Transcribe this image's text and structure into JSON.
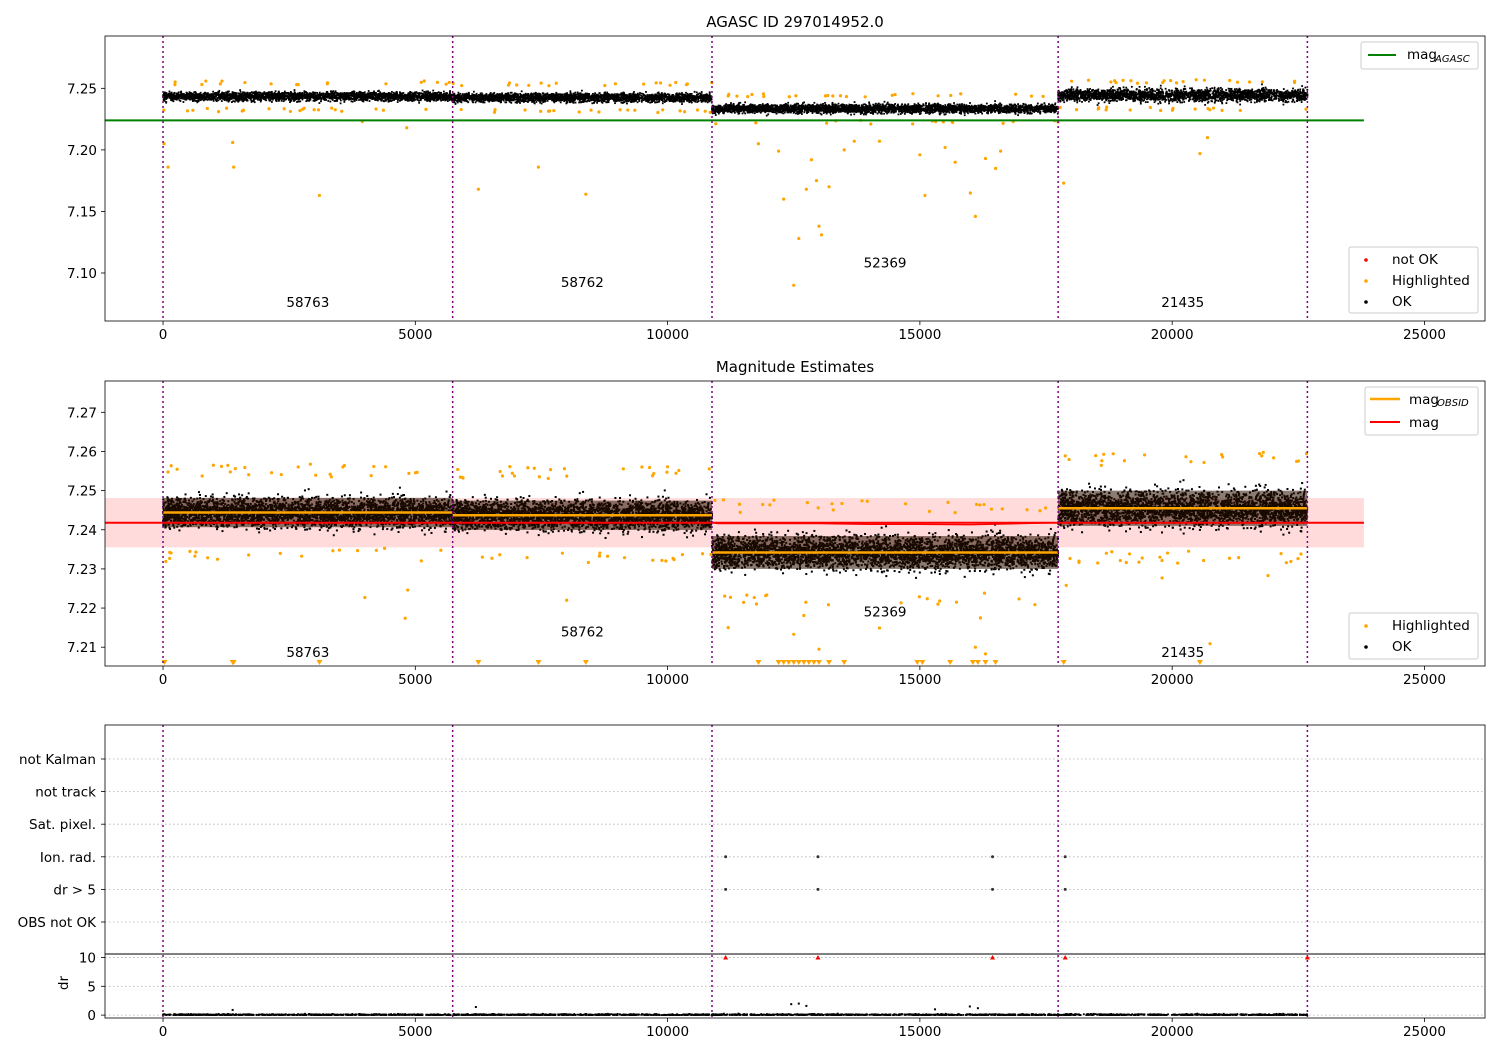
{
  "colors": {
    "ok": "#000000",
    "highlighted": "#ffa500",
    "not_ok": "#ff0000",
    "agasc_line": "#008000",
    "obsid_line": "#ffa500",
    "mag_line": "#ff0000",
    "mag_band": "#ffcccc",
    "obs_divider": "#800080",
    "grid": "#b0b0b0"
  },
  "chart_data": [
    {
      "type": "scatter",
      "title": "AGASC ID 297014952.0",
      "xlim": [
        -1150,
        26200
      ],
      "ylim": [
        7.061,
        7.2925
      ],
      "xticks": [
        0,
        5000,
        10000,
        15000,
        20000,
        25000
      ],
      "xtick_labels": [
        "0",
        "5000",
        "10000",
        "15000",
        "20000",
        "25000"
      ],
      "yticks": [
        7.1,
        7.15,
        7.2,
        7.25
      ],
      "ytick_labels": [
        "7.10",
        "7.15",
        "7.20",
        "7.25"
      ],
      "obs_boundaries": [
        0,
        5740,
        10880,
        17740,
        22680
      ],
      "observations": [
        {
          "obsid": "58763",
          "start": 0,
          "end": 5740,
          "mean": 7.2435,
          "label_y": 7.0725
        },
        {
          "obsid": "58762",
          "start": 5740,
          "end": 10880,
          "mean": 7.2425,
          "label_y": 7.0885
        },
        {
          "obsid": "52369",
          "start": 10880,
          "end": 17740,
          "mean": 7.2335,
          "label_y": 7.1045
        },
        {
          "obsid": "21435",
          "start": 17740,
          "end": 22680,
          "mean": 7.2445,
          "label_y": 7.0725
        }
      ],
      "hlines": [
        {
          "name": "mag_AGASC",
          "y": 7.224,
          "x": [
            -1150,
            23800
          ]
        }
      ],
      "highlighted_points": [
        [
          20,
          7.205
        ],
        [
          100,
          7.186
        ],
        [
          1380,
          7.206
        ],
        [
          1400,
          7.186
        ],
        [
          3100,
          7.163
        ],
        [
          4830,
          7.218
        ],
        [
          3950,
          7.223
        ],
        [
          6250,
          7.168
        ],
        [
          7440,
          7.186
        ],
        [
          8380,
          7.164
        ],
        [
          11800,
          7.205
        ],
        [
          12200,
          7.199
        ],
        [
          12300,
          7.16
        ],
        [
          12500,
          7.09
        ],
        [
          12600,
          7.128
        ],
        [
          12750,
          7.168
        ],
        [
          12850,
          7.192
        ],
        [
          12950,
          7.175
        ],
        [
          13000,
          7.138
        ],
        [
          13050,
          7.131
        ],
        [
          13200,
          7.17
        ],
        [
          13500,
          7.2
        ],
        [
          13700,
          7.207
        ],
        [
          14200,
          7.207
        ],
        [
          15000,
          7.196
        ],
        [
          15100,
          7.163
        ],
        [
          15500,
          7.202
        ],
        [
          15700,
          7.19
        ],
        [
          16000,
          7.165
        ],
        [
          16100,
          7.146
        ],
        [
          16300,
          7.193
        ],
        [
          16500,
          7.185
        ],
        [
          16600,
          7.199
        ],
        [
          17850,
          7.173
        ],
        [
          20550,
          7.197
        ],
        [
          20700,
          7.21
        ]
      ],
      "annotations": [
        "58763",
        "58762",
        "52369",
        "21435"
      ],
      "legend_upper": [
        {
          "label": "mag",
          "subscript": "AGASC",
          "color": "#008000",
          "kind": "line"
        }
      ],
      "legend_lower": [
        {
          "label": "not OK",
          "color": "#ff0000",
          "kind": "marker"
        },
        {
          "label": "Highlighted",
          "color": "#ffa500",
          "kind": "marker"
        },
        {
          "label": "OK",
          "color": "#000000",
          "kind": "marker"
        }
      ],
      "grid": false
    },
    {
      "type": "scatter",
      "title": "Magnitude Estimates",
      "xlim": [
        -1150,
        26200
      ],
      "ylim": [
        7.2052,
        7.278
      ],
      "xticks": [
        0,
        5000,
        10000,
        15000,
        20000,
        25000
      ],
      "xtick_labels": [
        "0",
        "5000",
        "10000",
        "15000",
        "20000",
        "25000"
      ],
      "yticks": [
        7.21,
        7.22,
        7.23,
        7.24,
        7.25,
        7.26,
        7.27
      ],
      "ytick_labels": [
        "7.21",
        "7.22",
        "7.23",
        "7.24",
        "7.25",
        "7.26",
        "7.27"
      ],
      "obs_boundaries": [
        0,
        5740,
        10880,
        17740,
        22680
      ],
      "mag": 7.2418,
      "mag_band": [
        7.2355,
        7.2481
      ],
      "mag_x": [
        -1150,
        23800
      ],
      "observations": [
        {
          "obsid": "58763",
          "start": 0,
          "end": 5740,
          "mean": 7.2444,
          "spread": 0.0025,
          "label_y": 7.2075
        },
        {
          "obsid": "58762",
          "start": 5740,
          "end": 10880,
          "mean": 7.2437,
          "spread": 0.0025,
          "label_y": 7.2127
        },
        {
          "obsid": "52369",
          "start": 10880,
          "end": 17740,
          "mean": 7.2342,
          "spread": 0.0028,
          "label_y": 7.2178
        },
        {
          "obsid": "21435",
          "start": 17740,
          "end": 22680,
          "mean": 7.2455,
          "spread": 0.003,
          "label_y": 7.2075
        }
      ],
      "mag_trace": [
        [
          0,
          7.2418
        ],
        [
          10880,
          7.2418
        ],
        [
          11000,
          7.2416
        ],
        [
          13000,
          7.2416
        ],
        [
          14000,
          7.2414
        ],
        [
          15000,
          7.2414
        ],
        [
          16000,
          7.2413
        ],
        [
          17740,
          7.2418
        ],
        [
          22680,
          7.2418
        ]
      ],
      "highlighted_points": [
        [
          4000,
          7.2227
        ],
        [
          4800,
          7.2174
        ],
        [
          4850,
          7.2246
        ],
        [
          8000,
          7.222
        ],
        [
          11200,
          7.215
        ],
        [
          12500,
          7.2133
        ],
        [
          12700,
          7.2181
        ],
        [
          13000,
          7.2095
        ],
        [
          14200,
          7.2149
        ],
        [
          16100,
          7.21
        ],
        [
          16200,
          7.2175
        ],
        [
          16300,
          7.2083
        ],
        [
          17900,
          7.2258
        ],
        [
          19800,
          7.2277
        ],
        [
          20750,
          7.2109
        ],
        [
          21900,
          7.2283
        ]
      ],
      "clipped_points_x": [
        30,
        1380,
        1400,
        3100,
        6250,
        7440,
        8380,
        11800,
        12200,
        12300,
        12400,
        12500,
        12600,
        12700,
        12800,
        12900,
        13000,
        13200,
        13500,
        14950,
        15050,
        15600,
        16050,
        16150,
        16300,
        16500,
        17850,
        20550
      ],
      "annotations": [
        "58763",
        "58762",
        "52369",
        "21435"
      ],
      "legend_upper": [
        {
          "label": "mag",
          "subscript": "OBSID",
          "color": "#ffa500",
          "kind": "line"
        },
        {
          "label": "mag",
          "subscript": "",
          "color": "#ff0000",
          "kind": "line"
        }
      ],
      "legend_lower": [
        {
          "label": "Highlighted",
          "color": "#ffa500",
          "kind": "marker"
        },
        {
          "label": "OK",
          "color": "#000000",
          "kind": "marker"
        }
      ],
      "grid": false
    },
    {
      "type": "scatter",
      "title": "",
      "xlim": [
        -1150,
        26200
      ],
      "ylim": [
        -0.5,
        10.6
      ],
      "xticks": [
        0,
        5000,
        10000,
        15000,
        20000,
        25000
      ],
      "xtick_labels": [
        "0",
        "5000",
        "10000",
        "15000",
        "20000",
        "25000"
      ],
      "yticks": [
        0,
        5,
        10
      ],
      "ytick_labels": [
        "0",
        "5",
        "10"
      ],
      "ylabel": "dr",
      "obs_boundaries": [
        0,
        5740,
        10880,
        17740,
        22680
      ],
      "flag_categories": [
        "not Kalman",
        "not track",
        "Sat. pixel.",
        "Ion. rad.",
        "dr > 5",
        "OBS not OK"
      ],
      "flag_points": [
        {
          "category": "Ion. rad.",
          "x": [
            11150,
            12980,
            16440,
            17880
          ]
        },
        {
          "category": "dr > 5",
          "x": [
            11150,
            12980,
            16440,
            17880
          ]
        }
      ],
      "dr_clipped_x": [
        11150,
        12980,
        16440,
        17880,
        22680
      ],
      "dr_bumps": [
        [
          6200,
          1.4
        ],
        [
          12450,
          1.9
        ],
        [
          12600,
          2.0
        ],
        [
          12750,
          1.6
        ],
        [
          15990,
          1.5
        ],
        [
          16150,
          1.2
        ],
        [
          1380,
          0.9
        ],
        [
          15300,
          1.0
        ]
      ],
      "grid": true
    }
  ]
}
